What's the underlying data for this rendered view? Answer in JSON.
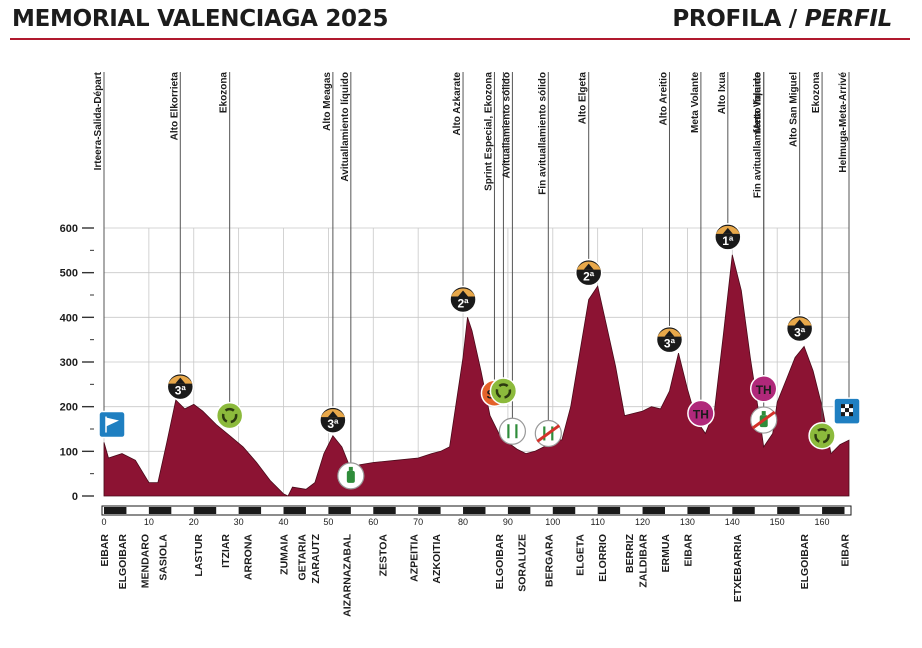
{
  "header": {
    "title": "MEMORIAL VALENCIAGA 2025",
    "subtitle_main": "PROFILA / ",
    "subtitle_italic": "PERFIL"
  },
  "colors": {
    "profile_fill": "#8c1333",
    "accent_red": "#b0192e",
    "grid": "#c8c8c8",
    "text": "#1c1c1c",
    "km_bar_dark": "#1a1a1a",
    "kom_orange": "#e8a84a",
    "eco_green": "#8cba3c",
    "sprint_orange": "#e4622a",
    "meta_volante_magenta": "#b0287a",
    "start_blue": "#1f7fc1"
  },
  "chart_data": {
    "type": "area",
    "title": "",
    "xlabel": "",
    "ylabel": "",
    "xlim": [
      0,
      166
    ],
    "ylim": [
      0,
      600
    ],
    "y_ticks": [
      0,
      100,
      200,
      300,
      400,
      500,
      600
    ],
    "x_ticks": [
      0,
      10,
      20,
      30,
      40,
      50,
      60,
      70,
      80,
      90,
      100,
      110,
      120,
      130,
      140,
      150,
      160
    ],
    "grid": true,
    "profile": {
      "km": [
        0,
        1,
        4,
        7,
        10,
        12,
        14,
        16,
        18,
        20,
        22,
        25,
        28,
        31,
        34,
        37,
        40,
        41,
        42,
        45,
        47,
        49,
        51,
        53,
        55,
        57,
        60,
        65,
        70,
        73,
        75,
        77,
        80,
        81,
        82,
        84,
        86,
        88,
        90,
        92,
        94,
        96,
        98,
        100,
        102,
        104,
        106,
        108,
        110,
        112,
        114,
        116,
        118,
        120,
        122,
        124,
        126,
        128,
        130,
        132,
        134,
        136,
        138,
        140,
        142,
        144,
        146,
        147,
        149,
        150,
        152,
        154,
        156,
        158,
        160,
        162,
        164,
        166
      ],
      "altitude": [
        120,
        85,
        95,
        80,
        30,
        30,
        120,
        215,
        195,
        205,
        190,
        160,
        135,
        110,
        75,
        35,
        5,
        0,
        20,
        15,
        30,
        95,
        135,
        110,
        60,
        70,
        75,
        80,
        85,
        95,
        100,
        110,
        310,
        400,
        370,
        280,
        180,
        140,
        120,
        105,
        95,
        100,
        110,
        130,
        125,
        200,
        320,
        440,
        470,
        380,
        290,
        180,
        185,
        190,
        200,
        195,
        235,
        320,
        240,
        170,
        140,
        190,
        360,
        540,
        460,
        310,
        180,
        110,
        140,
        210,
        260,
        310,
        335,
        280,
        200,
        95,
        115,
        125
      ]
    },
    "markers": [
      {
        "km": 0,
        "label": "Irteera-Salida-Départ",
        "icon": "start-flag-icon",
        "alt": 160
      },
      {
        "km": 17,
        "label": "Alto Elkorrieta",
        "icon": "kom-icon",
        "category": "3ª",
        "alt": 245
      },
      {
        "km": 28,
        "label": "Ekozona",
        "icon": "eco-zone-icon",
        "alt": 180
      },
      {
        "km": 51,
        "label": "Alto Meagas",
        "icon": "kom-icon",
        "category": "3ª",
        "alt": 170
      },
      {
        "km": 55,
        "label": "Avituallamiento líquido",
        "icon": "bottle-icon",
        "alt": 45
      },
      {
        "km": 80,
        "label": "Alto Azkarate",
        "icon": "kom-icon",
        "category": "2ª",
        "alt": 440
      },
      {
        "km": 87,
        "label": "Sprint Especial, Ekozona",
        "icon": "sprint-icon",
        "label_icon": "SP",
        "alt": 230
      },
      {
        "km": 89,
        "label": "Sprint Especial, Ekozona",
        "icon": "eco-zone-icon",
        "alt": 235
      },
      {
        "km": 91,
        "label": "Avituallamiento sólido",
        "icon": "feed-zone-icon",
        "alt": 145
      },
      {
        "km": 99,
        "label": "Fin avituallamiento sólido",
        "icon": "feed-zone-end-icon",
        "alt": 140
      },
      {
        "km": 108,
        "label": "Alto Elgeta",
        "icon": "kom-icon",
        "category": "2ª",
        "alt": 500
      },
      {
        "km": 126,
        "label": "Alto Areitio",
        "icon": "kom-icon",
        "category": "3ª",
        "alt": 350
      },
      {
        "km": 133,
        "label": "Meta Volante",
        "icon": "intermediate-sprint-icon",
        "label_icon": "TH",
        "alt": 185
      },
      {
        "km": 139,
        "label": "Alto Ixua",
        "icon": "kom-icon",
        "category": "1ª",
        "alt": 580
      },
      {
        "km": 147,
        "label": "Meta Volante",
        "icon": "intermediate-sprint-icon",
        "label_icon": "TH",
        "alt": 240
      },
      {
        "km": 147,
        "label": "Fin avituallamiento líquido",
        "icon": "bottle-end-icon",
        "alt": 170
      },
      {
        "km": 155,
        "label": "Alto San Miguel",
        "icon": "kom-icon",
        "category": "3ª",
        "alt": 375
      },
      {
        "km": 160,
        "label": "Ekozona",
        "icon": "eco-zone-icon",
        "alt": 135
      },
      {
        "km": 166,
        "label": "Helmuga-Meta-Arrivé",
        "icon": "finish-flag-icon",
        "alt": 190
      }
    ],
    "towns": [
      {
        "km": 0,
        "name": "EIBAR"
      },
      {
        "km": 4,
        "name": "ELGOIBAR"
      },
      {
        "km": 9,
        "name": "MENDARO"
      },
      {
        "km": 13,
        "name": "SASIOLA"
      },
      {
        "km": 21,
        "name": "LASTUR"
      },
      {
        "km": 27,
        "name": "ITZIAR"
      },
      {
        "km": 32,
        "name": "ARRONA"
      },
      {
        "km": 40,
        "name": "ZUMAIA"
      },
      {
        "km": 44,
        "name": "GETARIA"
      },
      {
        "km": 47,
        "name": "ZARAUTZ"
      },
      {
        "km": 54,
        "name": "AIZARNAZABAL"
      },
      {
        "km": 62,
        "name": "ZESTOA"
      },
      {
        "km": 69,
        "name": "AZPEITIA"
      },
      {
        "km": 74,
        "name": "AZKOITIA"
      },
      {
        "km": 88,
        "name": "ELGOIBAR"
      },
      {
        "km": 93,
        "name": "SORALUZE"
      },
      {
        "km": 99,
        "name": "BERGARA"
      },
      {
        "km": 106,
        "name": "ELGETA"
      },
      {
        "km": 111,
        "name": "ELORRIO"
      },
      {
        "km": 117,
        "name": "BERRIZ"
      },
      {
        "km": 120,
        "name": "ZALDIBAR"
      },
      {
        "km": 125,
        "name": "ERMUA"
      },
      {
        "km": 130,
        "name": "EIBAR"
      },
      {
        "km": 141,
        "name": "ETXEBARRIA"
      },
      {
        "km": 156,
        "name": "ELGOIBAR"
      },
      {
        "km": 165,
        "name": "EIBAR"
      }
    ]
  }
}
